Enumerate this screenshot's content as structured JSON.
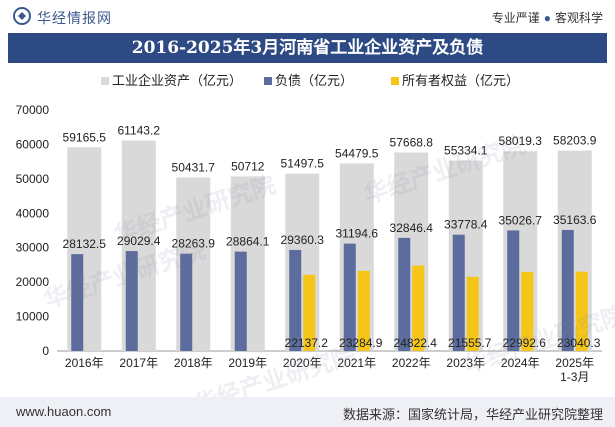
{
  "header": {
    "brand": "华经情报网",
    "tagline_left": "专业严谨",
    "tagline_right": "客观科学"
  },
  "footer": {
    "url": "www.huaon.com",
    "source": "数据来源：国家统计局，华经产业研究院整理"
  },
  "watermarks": [
    "华经产业研究院",
    "华经产业研究院",
    "华经产业研究院",
    "华经产业研究院",
    "华经产业研究院"
  ],
  "colors": {
    "assets": "#d9d9d9",
    "liabilities": "#5b6c9d",
    "equity": "#f5c518",
    "title_bg": "#2e4a84"
  },
  "chart_data": {
    "type": "bar",
    "title": "2016-2025年3月河南省工业企业资产及负债",
    "categories": [
      "2016年",
      "2017年",
      "2018年",
      "2019年",
      "2020年",
      "2021年",
      "2022年",
      "2023年",
      "2024年",
      "2025年\n1-3月"
    ],
    "series": [
      {
        "name": "工业企业资产（亿元）",
        "values": [
          59165.5,
          61143.2,
          50431.7,
          50712,
          51497.5,
          54479.5,
          57668.8,
          55334.1,
          58019.3,
          58203.9
        ]
      },
      {
        "name": "负债（亿元）",
        "values": [
          28132.5,
          29029.4,
          28263.9,
          28864.1,
          29360.3,
          31194.6,
          32846.4,
          33778.4,
          35026.7,
          35163.6
        ]
      },
      {
        "name": "所有者权益（亿元）",
        "values": [
          null,
          null,
          null,
          null,
          22137.2,
          23284.9,
          24822.4,
          21555.7,
          22992.6,
          23040.3
        ]
      }
    ],
    "labels": [
      [
        "59165.5",
        "61143.2",
        "50431.7",
        "50712",
        "51497.5",
        "54479.5",
        "57668.8",
        "55334.1",
        "58019.3",
        "58203.9"
      ],
      [
        "28132.5",
        "29029.4",
        "28263.9",
        "28864.1",
        "29360.3",
        "31194.6",
        "32846.4",
        "33778.4",
        "35026.7",
        "35163.6"
      ],
      [
        "",
        "",
        "",
        "",
        "22137.2",
        "23284.9",
        "24822.4",
        "21555.7",
        "22992.6",
        "23040.3"
      ]
    ],
    "yticks": [
      "0",
      "10000",
      "20000",
      "30000",
      "40000",
      "50000",
      "60000",
      "70000"
    ],
    "ylim": [
      0,
      70000
    ],
    "legend_position": "top",
    "grid": false
  }
}
